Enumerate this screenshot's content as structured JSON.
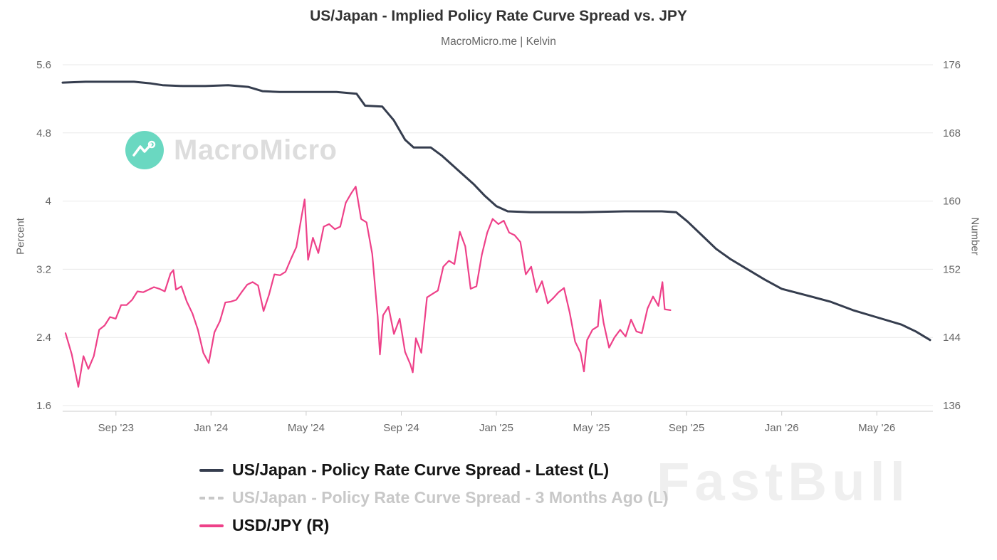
{
  "header": {
    "title": "US/Japan - Implied Policy Rate Curve Spread vs. JPY",
    "subtitle": "MacroMicro.me | Kelvin"
  },
  "watermarks": {
    "brand": "MacroMicro",
    "overlay": "FastBull"
  },
  "colors": {
    "background": "#ffffff",
    "title_text": "#333333",
    "subtitle_text": "#666666",
    "axis_text": "#666666",
    "grid_line": "#e8e8e8",
    "axis_line": "#cccccc",
    "legend_active_text": "#151515",
    "legend_inactive_text": "#c8c8c8",
    "watermark_text": "#d9d9d9",
    "watermark_logo": "#56d3b9",
    "fastbull_text": "#e3e3e3"
  },
  "chart_data": {
    "type": "line",
    "title": "US/Japan - Implied Policy Rate Curve Spread vs. JPY",
    "subtitle": "MacroMicro.me | Kelvin",
    "grid": true,
    "legend_position": "bottom",
    "x_axis": {
      "min": 2023.48,
      "max": 2026.53,
      "ticks": [
        {
          "x": 2023.6667,
          "label": "Sep '23"
        },
        {
          "x": 2024.0,
          "label": "Jan '24"
        },
        {
          "x": 2024.3333,
          "label": "May '24"
        },
        {
          "x": 2024.6667,
          "label": "Sep '24"
        },
        {
          "x": 2025.0,
          "label": "Jan '25"
        },
        {
          "x": 2025.3333,
          "label": "May '25"
        },
        {
          "x": 2025.6667,
          "label": "Sep '25"
        },
        {
          "x": 2026.0,
          "label": "Jan '26"
        },
        {
          "x": 2026.3333,
          "label": "May '26"
        }
      ]
    },
    "left_axis": {
      "label": "Percent",
      "min": 1.6,
      "max": 5.6,
      "ticks": [
        5.6,
        4.8,
        4,
        3.2,
        2.4,
        1.6
      ]
    },
    "right_axis": {
      "label": "Number",
      "min": 136,
      "max": 176,
      "ticks": [
        176,
        168,
        160,
        152,
        144,
        136
      ]
    },
    "series": [
      {
        "name": "US/Japan - Policy Rate Curve Spread - Latest (L)",
        "axis": "left",
        "color": "#353d4e",
        "width": 3,
        "dash": null,
        "visible": true,
        "points": [
          [
            2023.48,
            5.39
          ],
          [
            2023.56,
            5.4
          ],
          [
            2023.65,
            5.4
          ],
          [
            2023.73,
            5.4
          ],
          [
            2023.79,
            5.38
          ],
          [
            2023.83,
            5.36
          ],
          [
            2023.9,
            5.35
          ],
          [
            2023.98,
            5.35
          ],
          [
            2024.06,
            5.36
          ],
          [
            2024.13,
            5.34
          ],
          [
            2024.18,
            5.29
          ],
          [
            2024.24,
            5.28
          ],
          [
            2024.34,
            5.28
          ],
          [
            2024.44,
            5.28
          ],
          [
            2024.51,
            5.26
          ],
          [
            2024.54,
            5.12
          ],
          [
            2024.6,
            5.11
          ],
          [
            2024.64,
            4.95
          ],
          [
            2024.68,
            4.72
          ],
          [
            2024.71,
            4.63
          ],
          [
            2024.77,
            4.63
          ],
          [
            2024.81,
            4.53
          ],
          [
            2024.86,
            4.38
          ],
          [
            2024.92,
            4.2
          ],
          [
            2024.96,
            4.06
          ],
          [
            2025.0,
            3.94
          ],
          [
            2025.04,
            3.88
          ],
          [
            2025.12,
            3.87
          ],
          [
            2025.3,
            3.87
          ],
          [
            2025.45,
            3.88
          ],
          [
            2025.58,
            3.88
          ],
          [
            2025.63,
            3.87
          ],
          [
            2025.67,
            3.76
          ],
          [
            2025.72,
            3.6
          ],
          [
            2025.77,
            3.44
          ],
          [
            2025.82,
            3.32
          ],
          [
            2025.88,
            3.2
          ],
          [
            2025.94,
            3.08
          ],
          [
            2026.0,
            2.97
          ],
          [
            2026.08,
            2.9
          ],
          [
            2026.17,
            2.82
          ],
          [
            2026.25,
            2.72
          ],
          [
            2026.33,
            2.64
          ],
          [
            2026.42,
            2.55
          ],
          [
            2026.47,
            2.47
          ],
          [
            2026.52,
            2.37
          ]
        ]
      },
      {
        "name": "US/Japan - Policy Rate Curve Spread - 3 Months Ago (L)",
        "axis": "left",
        "color": "#bdbdbd",
        "width": 3,
        "dash": "7 5",
        "visible": false,
        "points": []
      },
      {
        "name": "USD/JPY (R)",
        "axis": "right",
        "color": "#ee4189",
        "width": 2.2,
        "dash": null,
        "visible": true,
        "points": [
          [
            2023.49,
            144.5
          ],
          [
            2023.512,
            142.0
          ],
          [
            2023.535,
            138.2
          ],
          [
            2023.553,
            141.8
          ],
          [
            2023.57,
            140.3
          ],
          [
            2023.589,
            141.8
          ],
          [
            2023.608,
            144.9
          ],
          [
            2023.627,
            145.4
          ],
          [
            2023.646,
            146.4
          ],
          [
            2023.666,
            146.2
          ],
          [
            2023.685,
            147.8
          ],
          [
            2023.704,
            147.8
          ],
          [
            2023.723,
            148.4
          ],
          [
            2023.742,
            149.4
          ],
          [
            2023.762,
            149.3
          ],
          [
            2023.781,
            149.6
          ],
          [
            2023.8,
            149.9
          ],
          [
            2023.819,
            149.7
          ],
          [
            2023.838,
            149.4
          ],
          [
            2023.858,
            151.5
          ],
          [
            2023.868,
            151.9
          ],
          [
            2023.877,
            149.6
          ],
          [
            2023.896,
            150.0
          ],
          [
            2023.915,
            148.2
          ],
          [
            2023.935,
            146.8
          ],
          [
            2023.954,
            144.9
          ],
          [
            2023.973,
            142.2
          ],
          [
            2023.992,
            141.0
          ],
          [
            2024.012,
            144.6
          ],
          [
            2024.031,
            145.9
          ],
          [
            2024.05,
            148.1
          ],
          [
            2024.069,
            148.2
          ],
          [
            2024.088,
            148.4
          ],
          [
            2024.107,
            149.3
          ],
          [
            2024.127,
            150.2
          ],
          [
            2024.146,
            150.5
          ],
          [
            2024.165,
            150.1
          ],
          [
            2024.184,
            147.1
          ],
          [
            2024.203,
            149.0
          ],
          [
            2024.222,
            151.4
          ],
          [
            2024.242,
            151.3
          ],
          [
            2024.261,
            151.7
          ],
          [
            2024.28,
            153.2
          ],
          [
            2024.299,
            154.6
          ],
          [
            2024.318,
            158.3
          ],
          [
            2024.328,
            160.2
          ],
          [
            2024.34,
            153.1
          ],
          [
            2024.357,
            155.7
          ],
          [
            2024.376,
            153.9
          ],
          [
            2024.395,
            157.0
          ],
          [
            2024.414,
            157.3
          ],
          [
            2024.434,
            156.7
          ],
          [
            2024.453,
            157.0
          ],
          [
            2024.472,
            159.8
          ],
          [
            2024.491,
            160.9
          ],
          [
            2024.507,
            161.7
          ],
          [
            2024.526,
            157.9
          ],
          [
            2024.545,
            157.5
          ],
          [
            2024.565,
            153.8
          ],
          [
            2024.584,
            146.5
          ],
          [
            2024.592,
            142.0
          ],
          [
            2024.603,
            146.6
          ],
          [
            2024.622,
            147.6
          ],
          [
            2024.641,
            144.4
          ],
          [
            2024.661,
            146.2
          ],
          [
            2024.68,
            142.3
          ],
          [
            2024.699,
            140.8
          ],
          [
            2024.707,
            139.9
          ],
          [
            2024.718,
            143.9
          ],
          [
            2024.737,
            142.2
          ],
          [
            2024.757,
            148.7
          ],
          [
            2024.776,
            149.1
          ],
          [
            2024.795,
            149.5
          ],
          [
            2024.814,
            152.3
          ],
          [
            2024.834,
            153.0
          ],
          [
            2024.853,
            152.6
          ],
          [
            2024.872,
            156.4
          ],
          [
            2024.891,
            154.7
          ],
          [
            2024.91,
            149.7
          ],
          [
            2024.93,
            150.0
          ],
          [
            2024.949,
            153.7
          ],
          [
            2024.968,
            156.3
          ],
          [
            2024.987,
            157.9
          ],
          [
            2025.007,
            157.3
          ],
          [
            2025.026,
            157.7
          ],
          [
            2025.045,
            156.3
          ],
          [
            2025.064,
            156.0
          ],
          [
            2025.084,
            155.2
          ],
          [
            2025.103,
            151.4
          ],
          [
            2025.122,
            152.3
          ],
          [
            2025.141,
            149.3
          ],
          [
            2025.16,
            150.6
          ],
          [
            2025.18,
            148.0
          ],
          [
            2025.199,
            148.6
          ],
          [
            2025.218,
            149.3
          ],
          [
            2025.237,
            149.8
          ],
          [
            2025.257,
            146.9
          ],
          [
            2025.276,
            143.5
          ],
          [
            2025.295,
            142.2
          ],
          [
            2025.307,
            140.0
          ],
          [
            2025.318,
            143.7
          ],
          [
            2025.337,
            144.9
          ],
          [
            2025.356,
            145.3
          ],
          [
            2025.364,
            148.4
          ],
          [
            2025.376,
            145.7
          ],
          [
            2025.395,
            142.8
          ],
          [
            2025.414,
            144.0
          ],
          [
            2025.434,
            144.9
          ],
          [
            2025.453,
            144.1
          ],
          [
            2025.472,
            146.1
          ],
          [
            2025.491,
            144.7
          ],
          [
            2025.51,
            144.5
          ],
          [
            2025.53,
            147.4
          ],
          [
            2025.549,
            148.8
          ],
          [
            2025.568,
            147.7
          ],
          [
            2025.582,
            150.5
          ],
          [
            2025.59,
            147.3
          ],
          [
            2025.61,
            147.2
          ]
        ]
      }
    ]
  }
}
